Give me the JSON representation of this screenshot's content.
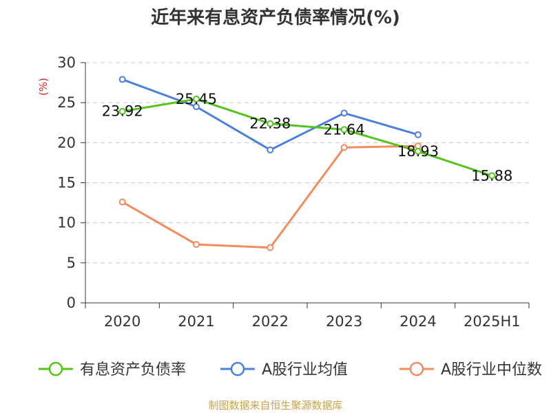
{
  "chart_data": {
    "type": "line",
    "title": "近年来有息资产负债率情况(%)",
    "ylabel": "(%)",
    "xlabel": "",
    "categories": [
      "2020",
      "2021",
      "2022",
      "2023",
      "2024",
      "2025H1"
    ],
    "ylim": [
      0,
      30
    ],
    "yticks": [
      0,
      5,
      10,
      15,
      20,
      25,
      30
    ],
    "grid": true,
    "legend_position": "bottom",
    "series": [
      {
        "name": "有息资产负债率",
        "color": "#52c41a",
        "values": [
          23.92,
          25.45,
          22.38,
          21.64,
          18.93,
          15.88
        ],
        "labels": [
          "23.92",
          "25.45",
          "22.38",
          "21.64",
          "18.93",
          "15.88"
        ]
      },
      {
        "name": "A股行业均值",
        "color": "#4a7fdc",
        "values": [
          27.9,
          24.5,
          19.1,
          23.7,
          21.0,
          null
        ]
      },
      {
        "name": "A股行业中位数",
        "color": "#f28c5c",
        "values": [
          12.6,
          7.3,
          6.9,
          19.4,
          19.6,
          null
        ]
      }
    ],
    "source": "制图数据来自恒生聚源数据库"
  }
}
